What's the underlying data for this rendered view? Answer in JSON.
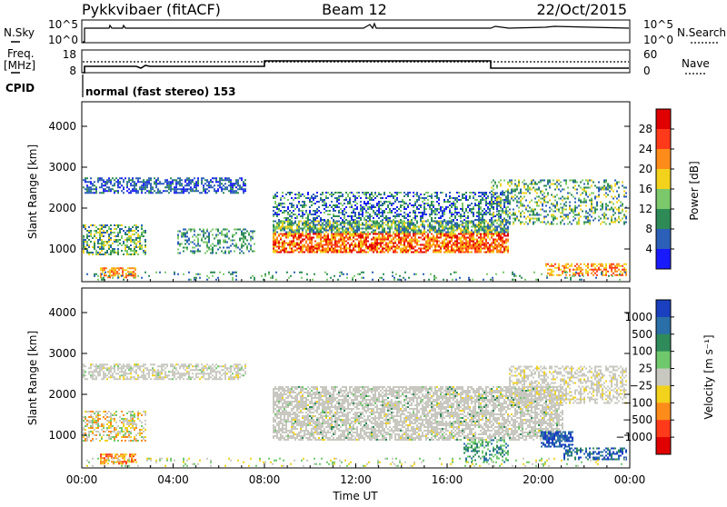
{
  "header": {
    "title": "Pykkvibaer (fitACF)",
    "beam": "Beam 12",
    "date": "22/Oct/2015"
  },
  "sky_panel": {
    "left_label": "N.Sky",
    "left_ticks": [
      "10^5",
      "10^0"
    ],
    "right_ticks": [
      "10^5",
      "10^0"
    ],
    "right_label": "N.Search"
  },
  "freq_panel": {
    "left_label_1": "Freq.",
    "left_label_2": "[MHz]",
    "left_ticks": [
      "18",
      "8"
    ],
    "right_ticks": [
      "60",
      "0"
    ],
    "right_label": "Nave"
  },
  "cpid": {
    "label": "CPID",
    "mode": "normal (fast stereo) 153"
  },
  "x_axis": {
    "label": "Time UT",
    "ticks": [
      "00:00",
      "04:00",
      "08:00",
      "12:00",
      "16:00",
      "20:00",
      "00:00"
    ]
  },
  "chart_data": [
    {
      "type": "heatmap",
      "name": "power",
      "ylabel": "Slant Range [km]",
      "y_ticks": [
        "1000",
        "2000",
        "3000",
        "4000"
      ],
      "ylim": [
        200,
        4600
      ],
      "colorbar_label": "Power [dB]",
      "colorbar_ticks": [
        "4",
        "8",
        "12",
        "16",
        "20",
        "24",
        "28"
      ],
      "colorbar_colors": [
        "#1a1aff",
        "#2c5fb8",
        "#2e8b57",
        "#7cc86b",
        "#f2d21a",
        "#ff8c1a",
        "#ff3a1a",
        "#e00000"
      ]
    },
    {
      "type": "heatmap",
      "name": "velocity",
      "ylabel": "Slant Range [km]",
      "y_ticks": [
        "1000",
        "2000",
        "3000",
        "4000"
      ],
      "ylim": [
        200,
        4600
      ],
      "colorbar_label": "Velocity [m s⁻¹]",
      "colorbar_ticks": [
        "1000",
        "500",
        "100",
        "25",
        "−25",
        "−100",
        "−500",
        "−1000"
      ],
      "colorbar_colors": [
        "#1a3fbf",
        "#2a6fa8",
        "#2f8b5a",
        "#6fc86b",
        "#c8c8c0",
        "#f2d21a",
        "#ff8c1a",
        "#ff3a1a",
        "#e00000"
      ]
    }
  ]
}
